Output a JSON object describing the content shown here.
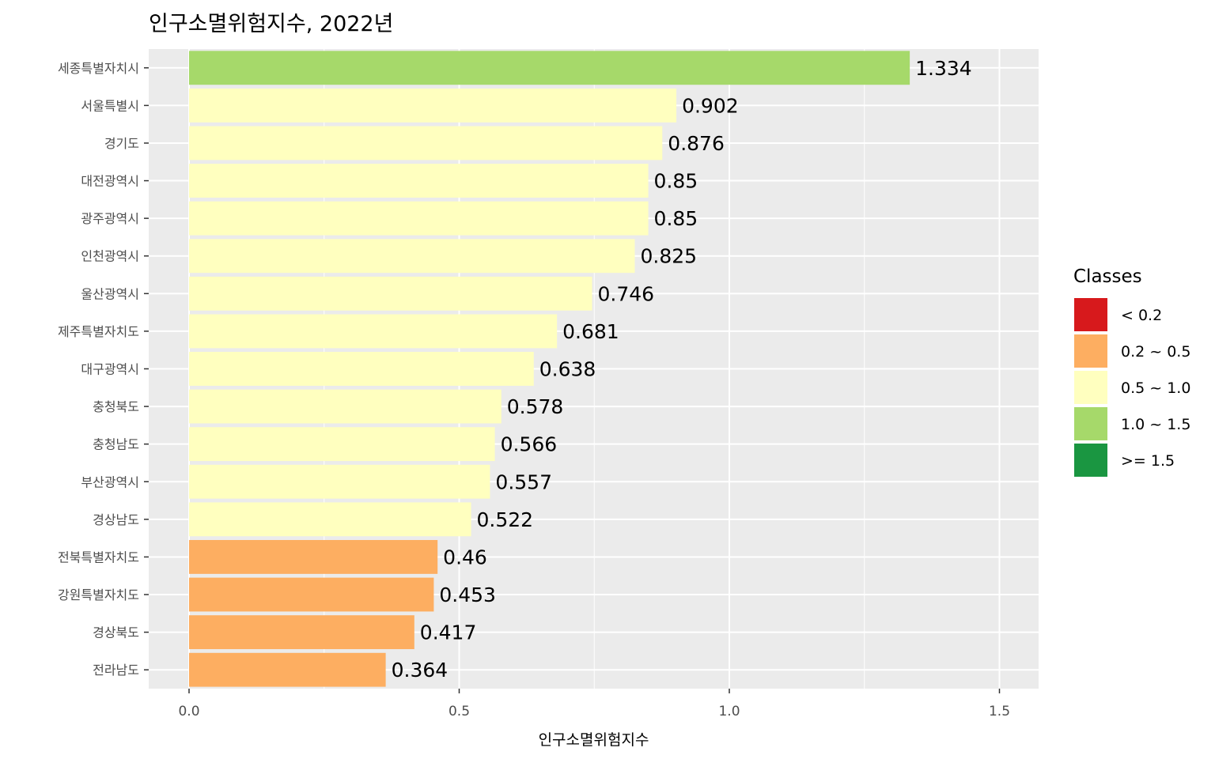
{
  "chart_data": {
    "type": "bar",
    "orientation": "horizontal",
    "title": "인구소멸위험지수, 2022년",
    "xlabel": "인구소멸위험지수",
    "ylabel": "",
    "xlim": [
      0,
      1.5
    ],
    "x_ticks": [
      "0.0",
      "0.5",
      "1.0",
      "1.5"
    ],
    "grid": true,
    "categories": [
      "세종특별자치시",
      "서울특별시",
      "경기도",
      "대전광역시",
      "광주광역시",
      "인천광역시",
      "울산광역시",
      "제주특별자치도",
      "대구광역시",
      "충청북도",
      "충청남도",
      "부산광역시",
      "경상남도",
      "전북특별자치도",
      "강원특별자치도",
      "경상북도",
      "전라남도"
    ],
    "values": [
      1.334,
      0.902,
      0.876,
      0.85,
      0.85,
      0.825,
      0.746,
      0.681,
      0.638,
      0.578,
      0.566,
      0.557,
      0.522,
      0.46,
      0.453,
      0.417,
      0.364
    ],
    "value_labels": [
      "1.334",
      "0.902",
      "0.876",
      "0.85",
      "0.85",
      "0.825",
      "0.746",
      "0.681",
      "0.638",
      "0.578",
      "0.566",
      "0.557",
      "0.522",
      "0.46",
      "0.453",
      "0.417",
      "0.364"
    ],
    "legend": {
      "title": "Classes",
      "placement": "right",
      "items": [
        {
          "label": "< 0.2",
          "color": "#d7191c"
        },
        {
          "label": "0.2 ~ 0.5",
          "color": "#fdae61"
        },
        {
          "label": "0.5 ~ 1.0",
          "color": "#ffffbf"
        },
        {
          "label": "1.0 ~ 1.5",
          "color": "#a6d96a"
        },
        {
          "label": ">= 1.5",
          "color": "#1a9641"
        }
      ]
    },
    "panel_background": "#ebebeb"
  }
}
